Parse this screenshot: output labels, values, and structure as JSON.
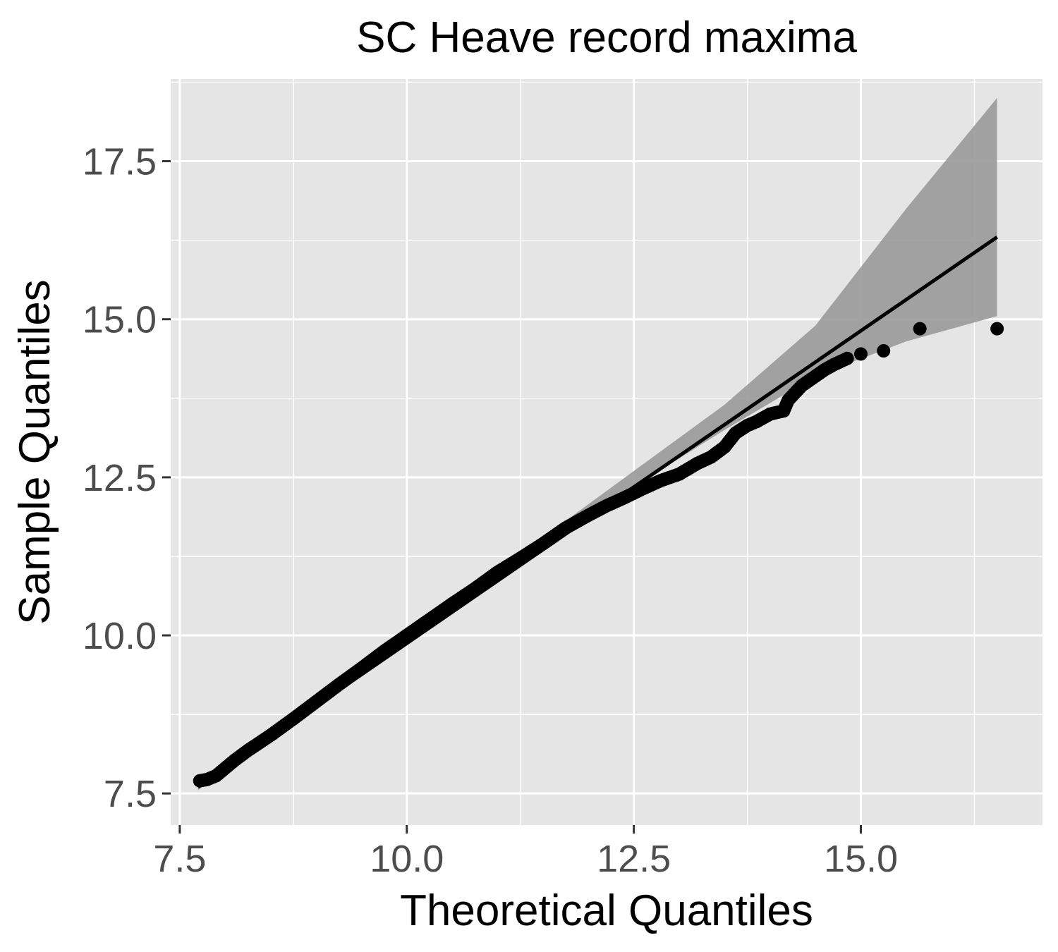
{
  "chart_data": {
    "type": "scatter",
    "title": "SC Heave record maxima",
    "xlabel": "Theoretical Quantiles",
    "ylabel": "Sample Quantiles",
    "xlim": [
      7.4,
      17.0
    ],
    "ylim": [
      7.0,
      18.8
    ],
    "x_ticks": [
      7.5,
      10.0,
      12.5,
      15.0
    ],
    "y_ticks": [
      7.5,
      10.0,
      12.5,
      15.0,
      17.5
    ],
    "x_tick_labels": [
      "7.5",
      "10.0",
      "12.5",
      "15.0"
    ],
    "y_tick_labels": [
      "7.5",
      "10.0",
      "12.5",
      "15.0",
      "17.5"
    ],
    "grid": true,
    "legend": "none",
    "colors": {
      "panel_background": "#e5e5e5",
      "grid": "#ffffff",
      "points": "#000000",
      "reference_line": "#000000",
      "confidence_band": "#999999"
    },
    "reference_line": {
      "x": [
        7.7,
        16.5
      ],
      "y": [
        7.6,
        16.3
      ]
    },
    "confidence_band": {
      "x": [
        7.7,
        10.0,
        11.5,
        12.5,
        13.5,
        14.5,
        15.5,
        16.5
      ],
      "upper": [
        7.65,
        10.05,
        11.55,
        12.6,
        13.65,
        14.9,
        16.75,
        18.5
      ],
      "lower": [
        7.55,
        9.95,
        11.45,
        12.35,
        13.25,
        14.1,
        14.65,
        15.05
      ]
    },
    "series": [
      {
        "points": [
          [
            7.72,
            7.7
          ],
          [
            7.8,
            7.72
          ],
          [
            7.9,
            7.78
          ],
          [
            8.0,
            7.9
          ],
          [
            8.1,
            8.02
          ],
          [
            8.25,
            8.18
          ],
          [
            8.5,
            8.42
          ],
          [
            8.75,
            8.68
          ],
          [
            9.0,
            8.95
          ],
          [
            9.25,
            9.22
          ],
          [
            9.5,
            9.48
          ],
          [
            9.75,
            9.75
          ],
          [
            10.0,
            10.0
          ],
          [
            10.25,
            10.25
          ],
          [
            10.5,
            10.5
          ],
          [
            10.75,
            10.74
          ],
          [
            11.0,
            11.0
          ],
          [
            11.25,
            11.22
          ],
          [
            11.5,
            11.45
          ],
          [
            11.75,
            11.7
          ],
          [
            12.0,
            11.9
          ],
          [
            12.2,
            12.05
          ],
          [
            12.4,
            12.18
          ],
          [
            12.6,
            12.32
          ],
          [
            12.8,
            12.45
          ],
          [
            13.0,
            12.55
          ],
          [
            13.2,
            12.72
          ],
          [
            13.35,
            12.82
          ],
          [
            13.5,
            12.98
          ],
          [
            13.62,
            13.2
          ],
          [
            13.75,
            13.32
          ],
          [
            13.85,
            13.38
          ],
          [
            14.0,
            13.5
          ],
          [
            14.15,
            13.55
          ],
          [
            14.2,
            13.72
          ],
          [
            14.35,
            13.95
          ],
          [
            14.5,
            14.1
          ],
          [
            14.6,
            14.2
          ],
          [
            14.7,
            14.28
          ],
          [
            14.85,
            14.38
          ],
          [
            15.0,
            14.45
          ],
          [
            15.25,
            14.5
          ],
          [
            15.65,
            14.85
          ],
          [
            16.5,
            14.85
          ]
        ]
      }
    ]
  }
}
